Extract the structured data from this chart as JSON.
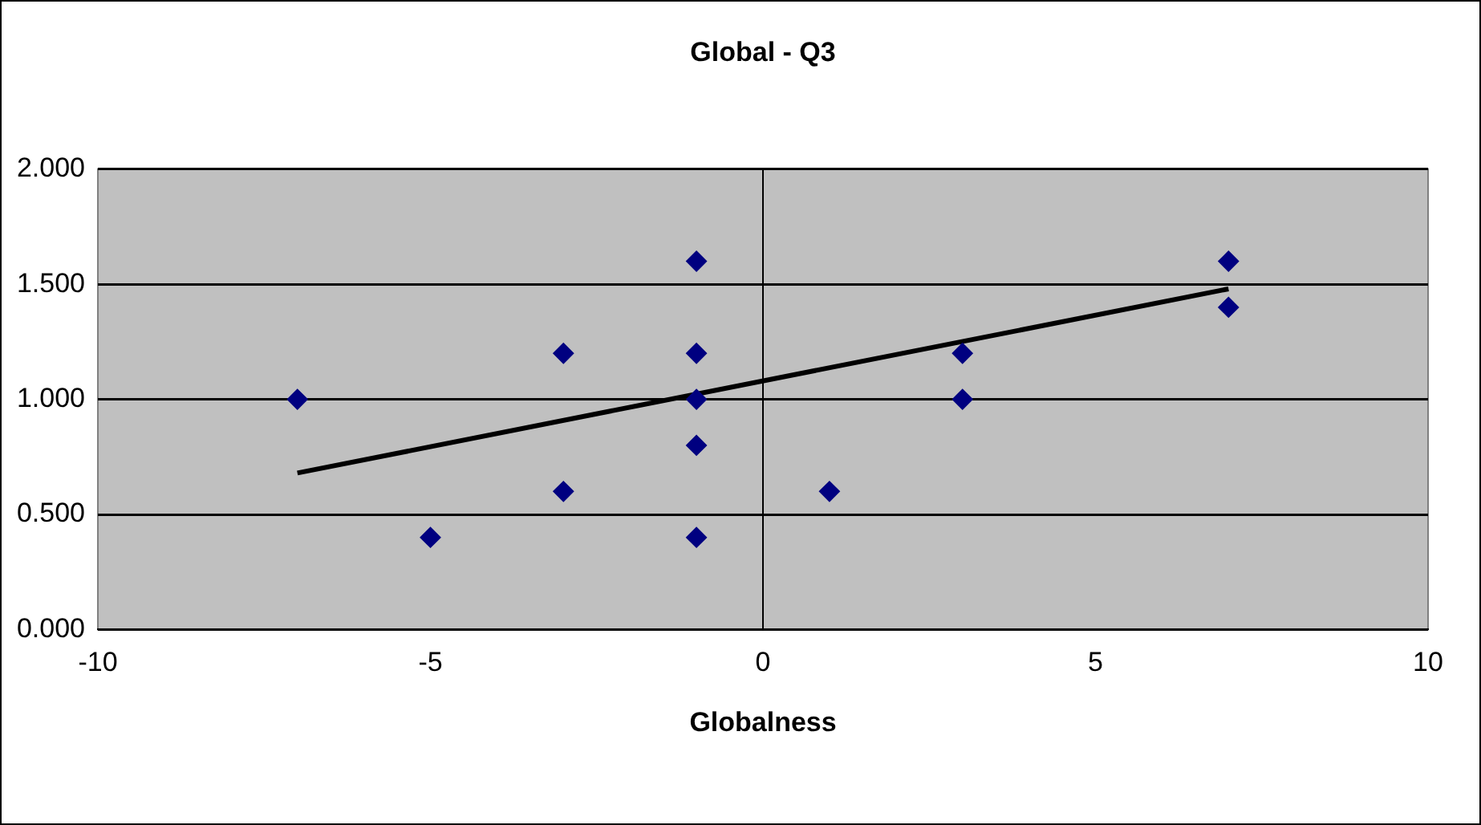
{
  "chart_data": {
    "type": "scatter",
    "title": "Global - Q3",
    "xlabel": "Globalness",
    "xlim": [
      -10,
      10
    ],
    "xticks": [
      -10,
      -5,
      0,
      5,
      10
    ],
    "ylim": [
      0,
      2
    ],
    "yticks": [
      {
        "value": 0,
        "label": "0.000"
      },
      {
        "value": 0.5,
        "label": "0.500"
      },
      {
        "value": 1,
        "label": "1.000"
      },
      {
        "value": 1.5,
        "label": "1.500"
      },
      {
        "value": 2,
        "label": "2.000"
      }
    ],
    "grid": "y",
    "legend": false,
    "marker": "diamond",
    "series": [
      {
        "type": "scatter",
        "color": "#000080",
        "x": [
          -7,
          -5,
          -3,
          -3,
          -1,
          -1,
          -1,
          -1,
          -1,
          1,
          3,
          3,
          7,
          7
        ],
        "values": [
          1.0,
          0.4,
          1.2,
          0.6,
          1.6,
          1.2,
          1.0,
          0.8,
          0.4,
          0.6,
          1.2,
          1.0,
          1.6,
          1.4
        ]
      },
      {
        "type": "line",
        "color": "#000000",
        "x": [
          -7,
          7
        ],
        "values": [
          0.68,
          1.48
        ],
        "marker": "none"
      }
    ]
  }
}
